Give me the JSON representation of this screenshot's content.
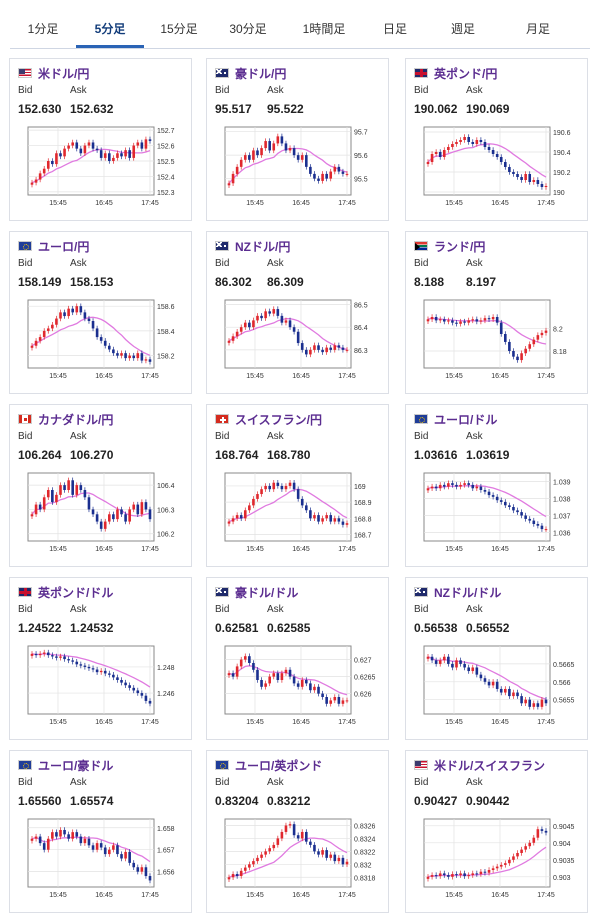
{
  "tabs": [
    "1分足",
    "5分足",
    "15分足",
    "30分足",
    "1時間足",
    "日足",
    "週足",
    "月足"
  ],
  "active_tab": 1,
  "labels": {
    "bid": "Bid",
    "ask": "Ask"
  },
  "colors": {
    "up": "#e0282e",
    "down": "#1a2f8f",
    "ma": "#e07ae0",
    "ma2": "#7fcfe8",
    "pair": "#5b2d90",
    "tab_active": "#2a63b5"
  },
  "cards": [
    {
      "pair": "米ドル/円",
      "flag": "us-flag",
      "bid": "152.630",
      "ask": "152.632",
      "times": [
        "15:45",
        "16:45",
        "17:45"
      ],
      "yticks": [
        "152.7",
        "152.6",
        "152.5",
        "152.4",
        "152.3"
      ],
      "ymin": 152.28,
      "ymax": 152.72,
      "closes": [
        152.36,
        152.38,
        152.42,
        152.45,
        152.5,
        152.48,
        152.55,
        152.53,
        152.58,
        152.6,
        152.62,
        152.58,
        152.55,
        152.6,
        152.62,
        152.58,
        152.57,
        152.52,
        152.55,
        152.5,
        152.52,
        152.55,
        152.53,
        152.57,
        152.52,
        152.6,
        152.62,
        152.58,
        152.64,
        152.63
      ]
    },
    {
      "pair": "豪ドル/円",
      "flag": "au-flag",
      "bid": "95.517",
      "ask": "95.522",
      "times": [
        "15:45",
        "16:45",
        "17:45"
      ],
      "yticks": [
        "95.7",
        "95.6",
        "95.5"
      ],
      "ymin": 95.43,
      "ymax": 95.72,
      "closes": [
        95.48,
        95.52,
        95.55,
        95.58,
        95.6,
        95.58,
        95.62,
        95.6,
        95.63,
        95.66,
        95.62,
        95.65,
        95.68,
        95.65,
        95.62,
        95.63,
        95.6,
        95.58,
        95.6,
        95.55,
        95.52,
        95.5,
        95.49,
        95.52,
        95.5,
        95.53,
        95.55,
        95.53,
        95.52,
        95.52
      ]
    },
    {
      "pair": "英ポンド/円",
      "flag": "uk-flag",
      "bid": "190.062",
      "ask": "190.069",
      "times": [
        "15:45",
        "16:45",
        "17:45"
      ],
      "yticks": [
        "190.6",
        "190.4",
        "190.2",
        "190"
      ],
      "ymin": 189.97,
      "ymax": 190.65,
      "closes": [
        190.3,
        190.38,
        190.4,
        190.35,
        190.42,
        190.45,
        190.48,
        190.5,
        190.52,
        190.55,
        190.5,
        190.48,
        190.52,
        190.5,
        190.45,
        190.42,
        190.38,
        190.35,
        190.3,
        190.25,
        190.2,
        190.18,
        190.15,
        190.12,
        190.18,
        190.1,
        190.12,
        190.08,
        190.05,
        190.06
      ]
    },
    {
      "pair": "ユーロ/円",
      "flag": "eu-flag",
      "bid": "158.149",
      "ask": "158.153",
      "times": [
        "15:45",
        "16:45",
        "17:45"
      ],
      "yticks": [
        "158.6",
        "158.4",
        "158.2"
      ],
      "ymin": 158.1,
      "ymax": 158.65,
      "closes": [
        158.28,
        158.32,
        158.35,
        158.4,
        158.42,
        158.45,
        158.5,
        158.55,
        158.52,
        158.58,
        158.55,
        158.6,
        158.55,
        158.5,
        158.48,
        158.42,
        158.35,
        158.32,
        158.28,
        158.25,
        158.22,
        158.2,
        158.22,
        158.18,
        158.2,
        158.18,
        158.22,
        158.16,
        158.17,
        158.15
      ]
    },
    {
      "pair": "NZドル/円",
      "flag": "nz-flag",
      "bid": "86.302",
      "ask": "86.309",
      "times": [
        "15:45",
        "16:45",
        "17:45"
      ],
      "yticks": [
        "86.5",
        "86.4",
        "86.3"
      ],
      "ymin": 86.22,
      "ymax": 86.52,
      "closes": [
        86.34,
        86.36,
        86.38,
        86.4,
        86.42,
        86.4,
        86.43,
        86.45,
        86.44,
        86.47,
        86.46,
        86.48,
        86.45,
        86.42,
        86.43,
        86.4,
        86.38,
        86.33,
        86.3,
        86.28,
        86.3,
        86.32,
        86.3,
        86.29,
        86.31,
        86.3,
        86.32,
        86.31,
        86.3,
        86.3
      ]
    },
    {
      "pair": "ランド/円",
      "flag": "za-flag",
      "bid": "8.188",
      "ask": "8.197",
      "times": [
        "15:45",
        "16:45",
        "17:45"
      ],
      "yticks": [
        "8.2",
        "8.18"
      ],
      "ymin": 8.165,
      "ymax": 8.225,
      "closes": [
        8.208,
        8.21,
        8.207,
        8.208,
        8.206,
        8.207,
        8.205,
        8.204,
        8.206,
        8.205,
        8.207,
        8.208,
        8.206,
        8.207,
        8.209,
        8.208,
        8.21,
        8.205,
        8.195,
        8.188,
        8.18,
        8.175,
        8.172,
        8.178,
        8.182,
        8.186,
        8.19,
        8.194,
        8.196,
        8.198
      ]
    },
    {
      "pair": "カナダドル/円",
      "flag": "ca-flag",
      "bid": "106.264",
      "ask": "106.270",
      "times": [
        "15:45",
        "16:45",
        "17:45"
      ],
      "yticks": [
        "106.4",
        "106.3",
        "106.2"
      ],
      "ymin": 106.17,
      "ymax": 106.45,
      "closes": [
        106.28,
        106.32,
        106.3,
        106.35,
        106.38,
        106.33,
        106.36,
        106.4,
        106.38,
        106.42,
        106.36,
        106.4,
        106.38,
        106.35,
        106.3,
        106.28,
        106.25,
        106.22,
        106.25,
        106.28,
        106.26,
        106.3,
        106.28,
        106.25,
        106.3,
        106.32,
        106.28,
        106.33,
        106.3,
        106.26
      ]
    },
    {
      "pair": "スイスフラン/円",
      "flag": "ch-flag",
      "bid": "168.764",
      "ask": "168.780",
      "times": [
        "15:45",
        "16:45",
        "17:45"
      ],
      "yticks": [
        "169",
        "168.9",
        "168.8",
        "168.7"
      ],
      "ymin": 168.66,
      "ymax": 169.08,
      "closes": [
        168.78,
        168.8,
        168.82,
        168.8,
        168.85,
        168.88,
        168.92,
        168.95,
        168.98,
        169.0,
        168.98,
        169.02,
        169.0,
        168.98,
        169.0,
        169.02,
        168.98,
        168.92,
        168.88,
        168.85,
        168.8,
        168.82,
        168.78,
        168.8,
        168.82,
        168.78,
        168.8,
        168.78,
        168.76,
        168.77
      ]
    },
    {
      "pair": "ユーロ/ドル",
      "flag": "eu-flag",
      "bid": "1.03616",
      "ask": "1.03619",
      "times": [
        "15:45",
        "16:45",
        "17:45"
      ],
      "yticks": [
        "1.039",
        "1.038",
        "1.037",
        "1.036"
      ],
      "ymin": 1.0355,
      "ymax": 1.0395,
      "closes": [
        1.0386,
        1.0387,
        1.0386,
        1.0388,
        1.0387,
        1.0389,
        1.0388,
        1.0387,
        1.0388,
        1.0389,
        1.0388,
        1.0386,
        1.0387,
        1.0385,
        1.0384,
        1.0382,
        1.0381,
        1.0379,
        1.0378,
        1.0376,
        1.0375,
        1.0373,
        1.0372,
        1.037,
        1.0368,
        1.0367,
        1.0365,
        1.0364,
        1.0362,
        1.0362
      ]
    },
    {
      "pair": "英ポンド/ドル",
      "flag": "uk-flag",
      "bid": "1.24522",
      "ask": "1.24532",
      "times": [
        "15:45",
        "16:45",
        "17:45"
      ],
      "yticks": [
        "1.248",
        "1.246"
      ],
      "ymin": 1.2444,
      "ymax": 1.2496,
      "closes": [
        1.249,
        1.2489,
        1.249,
        1.2491,
        1.2489,
        1.2488,
        1.2487,
        1.2488,
        1.2486,
        1.2485,
        1.2484,
        1.2482,
        1.2481,
        1.248,
        1.2479,
        1.2478,
        1.2476,
        1.2477,
        1.2475,
        1.2474,
        1.2472,
        1.247,
        1.2468,
        1.2466,
        1.2464,
        1.2462,
        1.246,
        1.2458,
        1.2454,
        1.2452
      ]
    },
    {
      "pair": "豪ドル/ドル",
      "flag": "au-flag",
      "bid": "0.62581",
      "ask": "0.62585",
      "times": [
        "15:45",
        "16:45",
        "17:45"
      ],
      "yticks": [
        "0.627",
        "0.6265",
        "0.626"
      ],
      "ymin": 0.6254,
      "ymax": 0.6274,
      "closes": [
        0.6266,
        0.6265,
        0.6268,
        0.627,
        0.6271,
        0.6269,
        0.6267,
        0.6264,
        0.6262,
        0.6263,
        0.6265,
        0.6266,
        0.6264,
        0.6266,
        0.6267,
        0.6265,
        0.6263,
        0.6262,
        0.6264,
        0.6263,
        0.6261,
        0.6262,
        0.626,
        0.6259,
        0.6257,
        0.6258,
        0.6259,
        0.6257,
        0.6258,
        0.6258
      ]
    },
    {
      "pair": "NZドル/ドル",
      "flag": "nz-flag",
      "bid": "0.56538",
      "ask": "0.56552",
      "times": [
        "15:45",
        "16:45",
        "17:45"
      ],
      "yticks": [
        "0.5665",
        "0.566",
        "0.5655"
      ],
      "ymin": 0.5651,
      "ymax": 0.567,
      "closes": [
        0.5667,
        0.5666,
        0.5665,
        0.5666,
        0.5667,
        0.5665,
        0.5664,
        0.5666,
        0.5665,
        0.5664,
        0.5663,
        0.5664,
        0.5662,
        0.5661,
        0.566,
        0.5659,
        0.566,
        0.5658,
        0.5657,
        0.5658,
        0.5656,
        0.5657,
        0.5656,
        0.5654,
        0.5655,
        0.5653,
        0.5654,
        0.5653,
        0.5655,
        0.5654
      ]
    },
    {
      "pair": "ユーロ/豪ドル",
      "flag": "eu-flag",
      "bid": "1.65560",
      "ask": "1.65574",
      "times": [
        "15:45",
        "16:45",
        "17:45"
      ],
      "yticks": [
        "1.658",
        "1.657",
        "1.656"
      ],
      "ymin": 1.6553,
      "ymax": 1.6584,
      "closes": [
        1.6575,
        1.6576,
        1.6573,
        1.657,
        1.6575,
        1.6578,
        1.6576,
        1.6579,
        1.6577,
        1.6575,
        1.6578,
        1.6576,
        1.6573,
        1.6575,
        1.6572,
        1.657,
        1.6573,
        1.6571,
        1.6568,
        1.657,
        1.6572,
        1.6568,
        1.6566,
        1.6569,
        1.6564,
        1.6562,
        1.656,
        1.6562,
        1.6558,
        1.6556
      ]
    },
    {
      "pair": "ユーロ/英ポンド",
      "flag": "eu-flag",
      "bid": "0.83204",
      "ask": "0.83212",
      "times": [
        "15:45",
        "16:45",
        "17:45"
      ],
      "yticks": [
        "0.8326",
        "0.8324",
        "0.8322",
        "0.832",
        "0.8318"
      ],
      "ymin": 0.83165,
      "ymax": 0.8327,
      "closes": [
        0.8318,
        0.83185,
        0.83182,
        0.8319,
        0.83195,
        0.832,
        0.83205,
        0.8321,
        0.83215,
        0.8322,
        0.83225,
        0.8323,
        0.8324,
        0.8325,
        0.8326,
        0.83262,
        0.83245,
        0.8324,
        0.8325,
        0.83235,
        0.8323,
        0.8322,
        0.83215,
        0.83222,
        0.8321,
        0.83215,
        0.83205,
        0.8321,
        0.832,
        0.83204
      ]
    },
    {
      "pair": "米ドル/スイスフラン",
      "flag": "us-flag",
      "bid": "0.90427",
      "ask": "0.90442",
      "times": [
        "15:45",
        "16:45",
        "17:45"
      ],
      "yticks": [
        "0.9045",
        "0.904",
        "0.9035",
        "0.903"
      ],
      "ymin": 0.9027,
      "ymax": 0.9047,
      "closes": [
        0.903,
        0.90305,
        0.90302,
        0.9031,
        0.90305,
        0.903,
        0.90308,
        0.90305,
        0.9031,
        0.90302,
        0.90305,
        0.9031,
        0.90308,
        0.90315,
        0.90312,
        0.9032,
        0.90325,
        0.9033,
        0.90335,
        0.9034,
        0.9035,
        0.9036,
        0.9037,
        0.9038,
        0.9039,
        0.904,
        0.90415,
        0.9044,
        0.90435,
        0.9043
      ]
    }
  ]
}
